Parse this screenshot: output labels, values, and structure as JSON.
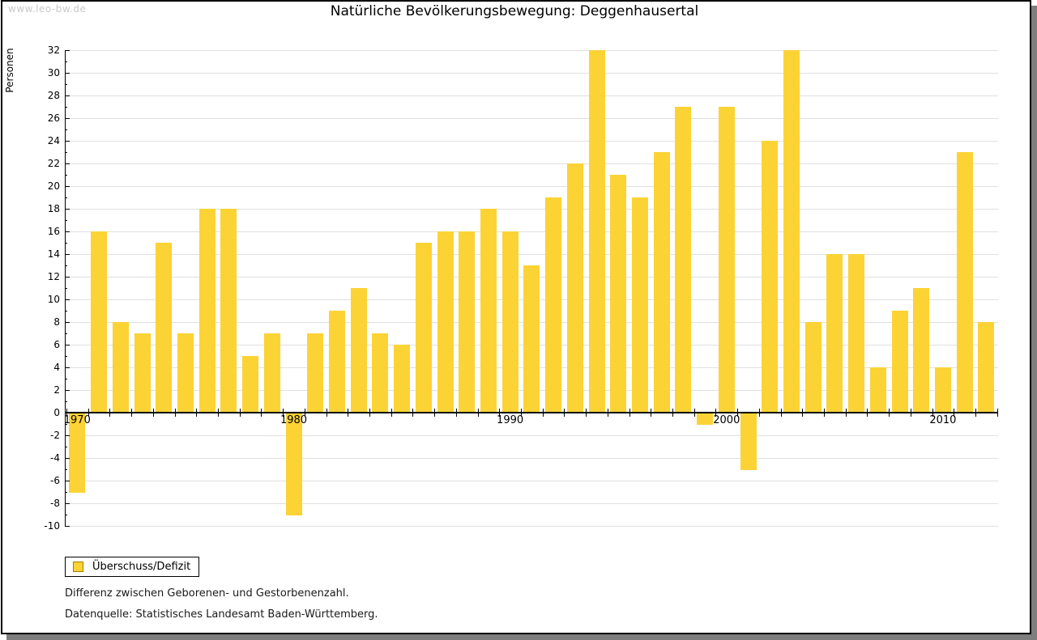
{
  "watermark": "www.leo-bw.de",
  "title": "Natürliche Bevölkerungsbewegung: Deggenhausertal",
  "chart_data": {
    "type": "bar",
    "title": "Natürliche Bevölkerungsbewegung: Deggenhausertal",
    "ylabel": "Personen",
    "xlabel": "",
    "ylim": [
      -10,
      32
    ],
    "ytick_step": 2,
    "grid": "horizontal at even values",
    "legend_position": "bottom-left",
    "bar_color": "#FBD335",
    "categories": [
      1970,
      1971,
      1972,
      1973,
      1974,
      1975,
      1976,
      1977,
      1978,
      1979,
      1980,
      1981,
      1982,
      1983,
      1984,
      1985,
      1986,
      1987,
      1988,
      1989,
      1990,
      1991,
      1992,
      1993,
      1994,
      1995,
      1996,
      1997,
      1998,
      1999,
      2000,
      2001,
      2002,
      2003,
      2004,
      2005,
      2006,
      2007,
      2008,
      2009,
      2010,
      2011,
      2012
    ],
    "series": [
      {
        "name": "Überschuss/Defizit",
        "values": [
          -7,
          16,
          8,
          7,
          15,
          7,
          18,
          18,
          5,
          7,
          -9,
          7,
          9,
          11,
          7,
          6,
          15,
          16,
          16,
          18,
          16,
          13,
          19,
          22,
          32,
          21,
          19,
          23,
          27,
          -1,
          27,
          -5,
          24,
          32,
          8,
          14,
          14,
          4,
          9,
          11,
          4,
          23,
          8
        ]
      }
    ],
    "x_axis_decade_labels": [
      1970,
      1980,
      1990,
      2000,
      2010
    ]
  },
  "legend": {
    "swatch_color": "#FBD335",
    "swatch_border": "#A08000"
  },
  "notes": {
    "line1": "Differenz zwischen Geborenen- und Gestorbenenzahl.",
    "line2": "Datenquelle: Statistisches Landesamt Baden-Württemberg."
  }
}
